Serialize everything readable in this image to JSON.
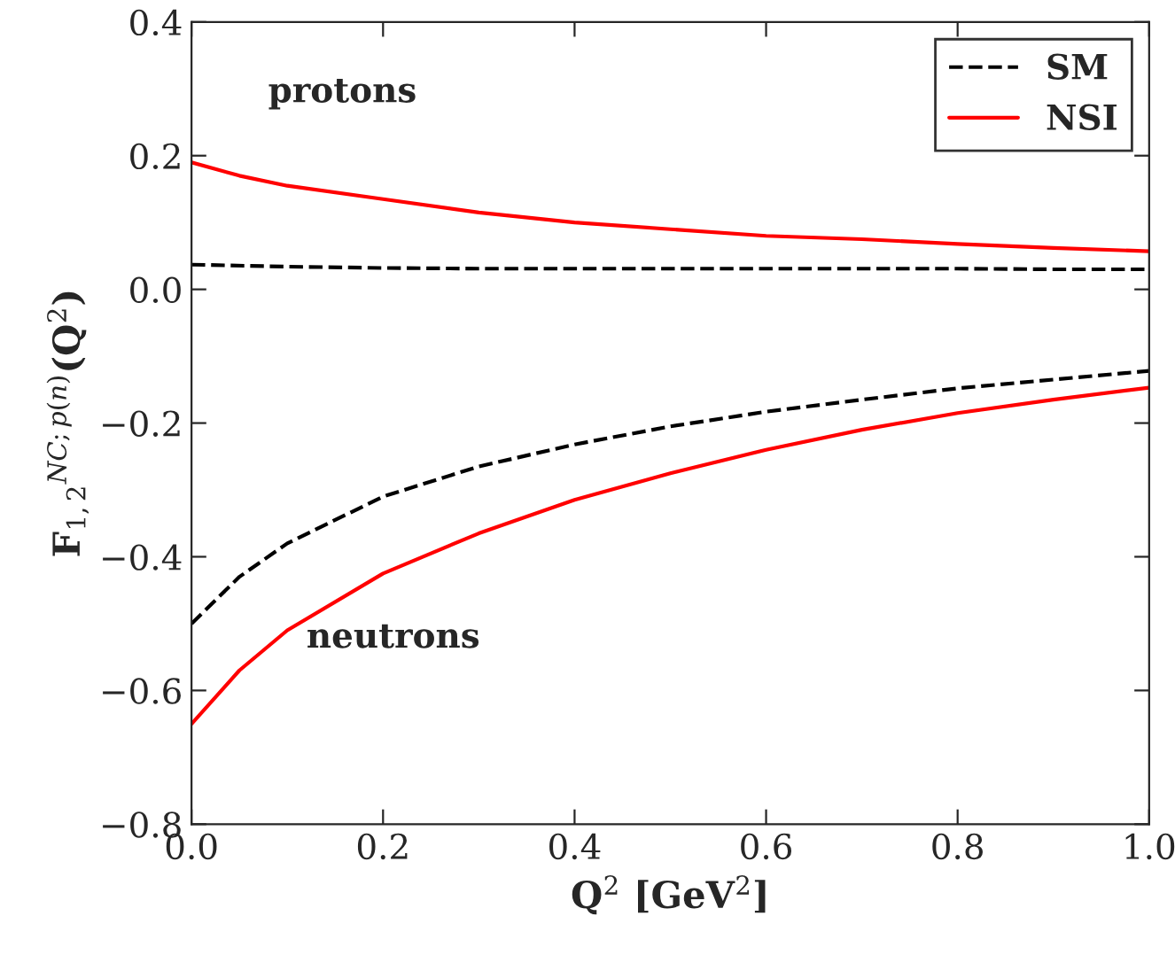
{
  "chart_data": {
    "type": "line",
    "xlabel": "Q$^{2}$ [GeV$^{2}$]",
    "ylabel": "F$_{1,2}$$^{NC;p(n)}$(Q$^{2}$)",
    "annotations": [
      "protons",
      "neutrons"
    ],
    "series": [
      {
        "name": "SM",
        "color": "#000000",
        "line_style": "dashed",
        "x": [
          0,
          0.1,
          0.2,
          0.3,
          0.4,
          0.5,
          0.6,
          0.7,
          0.8,
          0.9,
          1.0
        ],
        "values": [
          0.037,
          0.034,
          0.032,
          0.031,
          0.031,
          0.031,
          0.031,
          0.031,
          0.031,
          0.03,
          0.03
        ]
      },
      {
        "name": "NSI",
        "color": "#ff0000",
        "line_style": "solid",
        "x": [
          0,
          0.05,
          0.1,
          0.2,
          0.3,
          0.4,
          0.5,
          0.6,
          0.7,
          0.8,
          0.9,
          1.0
        ],
        "values": [
          0.19,
          0.17,
          0.155,
          0.135,
          0.115,
          0.1,
          0.09,
          0.08,
          0.075,
          0.068,
          0.062,
          0.057
        ]
      },
      {
        "color": "#000000",
        "line_style": "dashed",
        "x": [
          0,
          0.05,
          0.1,
          0.2,
          0.3,
          0.4,
          0.5,
          0.6,
          0.7,
          0.8,
          0.9,
          1.0
        ],
        "values": [
          -0.5,
          -0.43,
          -0.38,
          -0.31,
          -0.265,
          -0.232,
          -0.205,
          -0.183,
          -0.165,
          -0.148,
          -0.135,
          -0.122
        ]
      },
      {
        "color": "#ff0000",
        "line_style": "solid",
        "x": [
          0,
          0.05,
          0.1,
          0.2,
          0.3,
          0.4,
          0.5,
          0.6,
          0.7,
          0.8,
          0.9,
          1.0
        ],
        "values": [
          -0.65,
          -0.57,
          -0.51,
          -0.425,
          -0.365,
          -0.315,
          -0.275,
          -0.24,
          -0.21,
          -0.185,
          -0.165,
          -0.147
        ]
      }
    ],
    "xlim": [
      0,
      1.0
    ],
    "ylim": [
      -0.8,
      0.4
    ],
    "xticks": [
      {
        "value": 0,
        "label": "0.0"
      },
      {
        "value": 0.2,
        "label": "0.2"
      },
      {
        "value": 0.4,
        "label": "0.4"
      },
      {
        "value": 0.6,
        "label": "0.6"
      },
      {
        "value": 0.8,
        "label": "0.8"
      },
      {
        "value": 1.0,
        "label": "1.0"
      }
    ],
    "yticks": [
      {
        "value": -0.8,
        "label": "−0.8"
      },
      {
        "value": -0.6,
        "label": "−0.6"
      },
      {
        "value": -0.4,
        "label": "−0.4"
      },
      {
        "value": -0.2,
        "label": "−0.2"
      },
      {
        "value": 0,
        "label": "0.0"
      },
      {
        "value": 0.2,
        "label": "0.2"
      },
      {
        "value": 0.4,
        "label": "0.4"
      }
    ],
    "grid": false,
    "legend": "top right"
  }
}
